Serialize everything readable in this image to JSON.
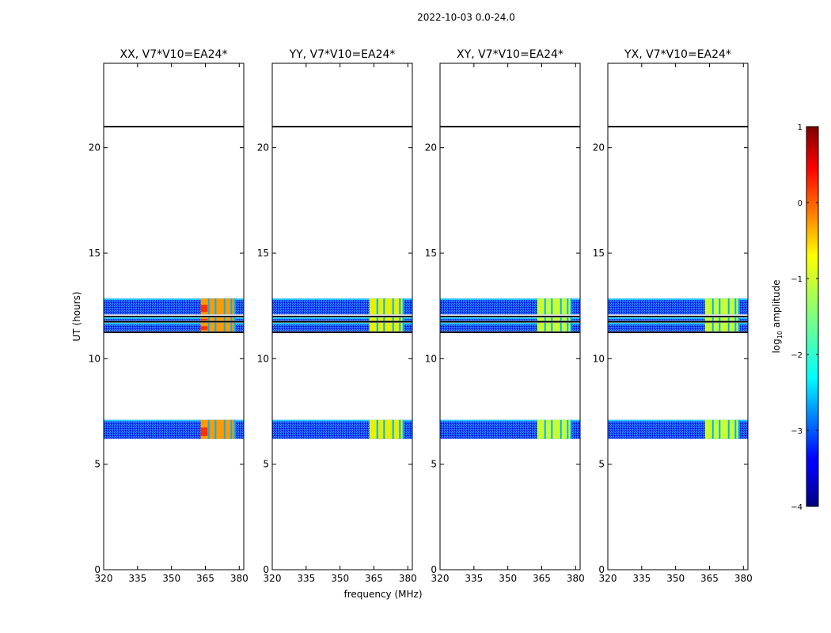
{
  "figure": {
    "suptitle": "2022-10-03 0.0-24.0",
    "xlabel": "frequency (MHz)",
    "ylabel": "UT (hours)"
  },
  "chart_data": {
    "type": "heatmap",
    "title": "2022-10-03 0.0-24.0",
    "xlabel": "frequency (MHz)",
    "ylabel": "UT (hours)",
    "xlim": [
      320,
      382
    ],
    "ylim": [
      0,
      24
    ],
    "x_ticks": [
      "320",
      "335",
      "350",
      "365",
      "380"
    ],
    "y_ticks": [
      "0",
      "5",
      "10",
      "15",
      "20"
    ],
    "panels": [
      {
        "title": "XX, V7*V10=EA24*",
        "strength": 1.0
      },
      {
        "title": "YY, V7*V10=EA24*",
        "strength": 0.7
      },
      {
        "title": "XY, V7*V10=EA24*",
        "strength": 0.55
      },
      {
        "title": "YX, V7*V10=EA24*",
        "strength": 0.5
      }
    ],
    "observation_bands_hours": [
      [
        6.2,
        7.1
      ],
      [
        11.3,
        11.7
      ],
      [
        11.8,
        11.95
      ],
      [
        12.1,
        12.85
      ]
    ],
    "separator_lines_hours": [
      11.25,
      11.75,
      12.0,
      21.0
    ],
    "rfi_band_mhz": [
      363,
      378
    ],
    "rfi_channel_lines_mhz": [
      366.5,
      369.5,
      373.5,
      376.5,
      378
    ],
    "colorbar": {
      "label": "log",
      "label_sub": "10",
      "label_suffix": " amplitude",
      "range": [
        -4,
        1
      ],
      "ticks": [
        "1",
        "0",
        "−1",
        "−2",
        "−3",
        "−4"
      ]
    }
  },
  "colors": {
    "axes": "#000000",
    "background": "#ffffff"
  }
}
